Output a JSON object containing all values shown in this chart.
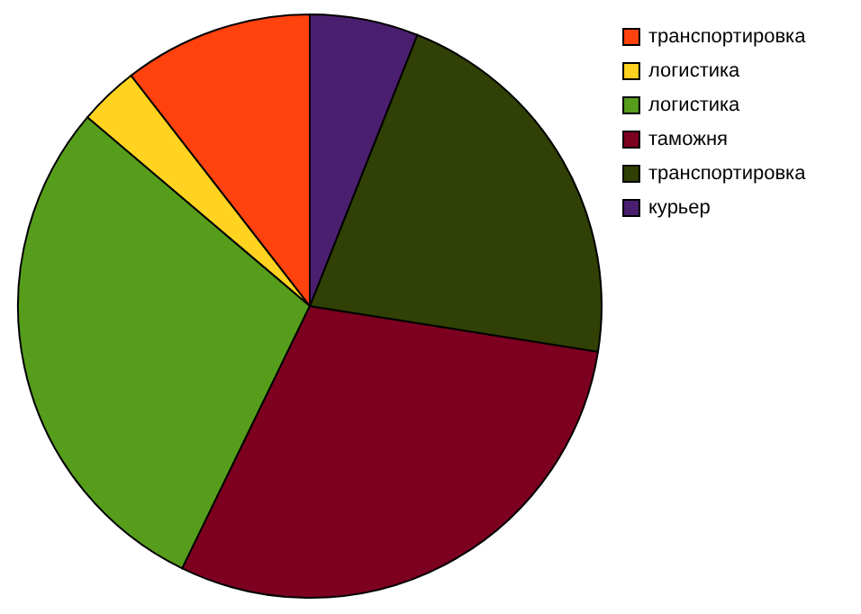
{
  "chart_data": {
    "type": "pie",
    "categories": [
      "транспортировка",
      "логистика",
      "логистика",
      "таможня",
      "транспортировка",
      "курьер"
    ],
    "values": [
      10.5,
      3.3,
      29,
      29.7,
      21.5,
      6
    ],
    "colors": [
      "#ff420e",
      "#ffd320",
      "#579d1c",
      "#7e0021",
      "#314004",
      "#4b1f6f"
    ],
    "legend": "top right"
  }
}
